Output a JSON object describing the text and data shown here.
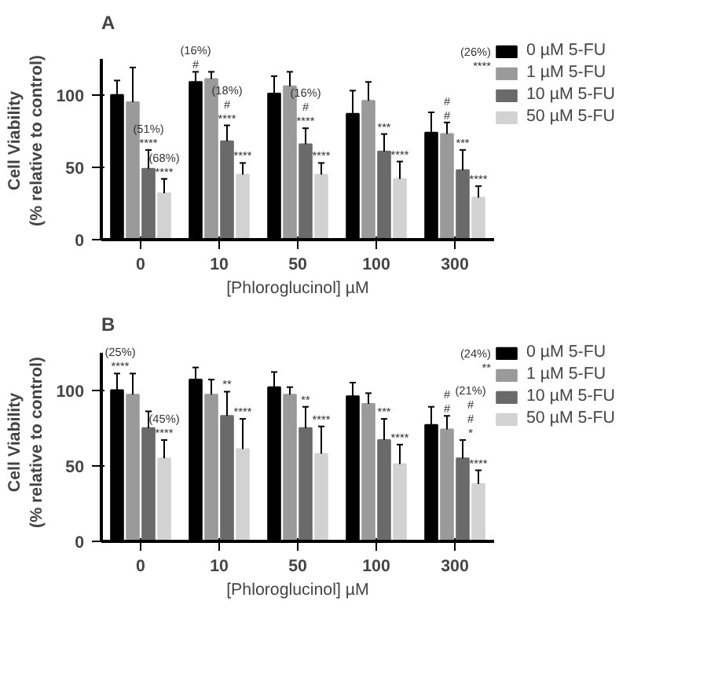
{
  "chart_data": [
    {
      "type": "bar",
      "title": "A",
      "xlabel": "[Phloroglucinol] µM",
      "ylabel": "Cell Viability\n(% relative to control)",
      "categories": [
        "0",
        "10",
        "50",
        "100",
        "300"
      ],
      "ylim": [
        0,
        125
      ],
      "yticks": [
        0,
        50,
        100
      ],
      "grid": false,
      "legend": "right",
      "series": [
        {
          "name": "0 µM 5-FU",
          "color": "#000000",
          "values": [
            100,
            109,
            101,
            87,
            74
          ],
          "errors": [
            10,
            7,
            12,
            16,
            14
          ]
        },
        {
          "name": "1 µM 5-FU",
          "color": "#9a9a9a",
          "values": [
            95,
            111,
            106,
            96,
            73
          ],
          "errors": [
            24,
            5,
            10,
            13,
            8
          ]
        },
        {
          "name": "10 µM 5-FU",
          "color": "#6a6a6a",
          "values": [
            49,
            68,
            66,
            61,
            48
          ],
          "errors": [
            13,
            11,
            11,
            12,
            14
          ]
        },
        {
          "name": "50 µM 5-FU",
          "color": "#d2d2d2",
          "values": [
            32,
            45,
            45,
            42,
            29
          ],
          "errors": [
            10,
            8,
            8,
            12,
            8
          ]
        }
      ],
      "annotations": [
        {
          "text": "(51%)\n****",
          "x": "0",
          "y": 62
        },
        {
          "text": "(68%)\n****",
          "x": "0",
          "y": 42
        },
        {
          "text": "(16%)\n#",
          "x": "10",
          "y": 116
        },
        {
          "text": "(18%)\n#\n****",
          "x": "10",
          "y": 79
        },
        {
          "text": "****",
          "x": "10",
          "y": 53
        },
        {
          "text": "(16%)\n#\n****",
          "x": "50",
          "y": 77
        },
        {
          "text": "****",
          "x": "50",
          "y": 53
        },
        {
          "text": "***",
          "x": "100",
          "y": 73
        },
        {
          "text": "****",
          "x": "100",
          "y": 54
        },
        "(26%)\n****",
        {
          "text": "#\n#",
          "x": "300",
          "y": 81
        },
        {
          "text": "***",
          "x": "300",
          "y": 62
        },
        {
          "text": "****",
          "x": "300",
          "y": 37
        }
      ]
    },
    {
      "type": "bar",
      "title": "B",
      "xlabel": "[Phloroglucinol] µM",
      "ylabel": "Cell Viability\n(% relative to control)",
      "categories": [
        "0",
        "10",
        "50",
        "100",
        "300"
      ],
      "ylim": [
        0,
        125
      ],
      "yticks": [
        0,
        50,
        100
      ],
      "grid": false,
      "legend": "right",
      "series": [
        {
          "name": "0 µM 5-FU",
          "color": "#000000",
          "values": [
            100,
            107,
            102,
            96,
            77
          ],
          "errors": [
            11,
            8,
            10,
            9,
            12
          ]
        },
        {
          "name": "1 µM 5-FU",
          "color": "#9a9a9a",
          "values": [
            97,
            97,
            97,
            91,
            74
          ],
          "errors": [
            14,
            10,
            5,
            7,
            9
          ]
        },
        {
          "name": "10 µM 5-FU",
          "color": "#6a6a6a",
          "values": [
            75,
            83,
            75,
            67,
            55
          ],
          "errors": [
            11,
            16,
            14,
            14,
            12
          ]
        },
        {
          "name": "50 µM 5-FU",
          "color": "#d2d2d2",
          "values": [
            55,
            61,
            58,
            51,
            38
          ],
          "errors": [
            12,
            20,
            18,
            13,
            9
          ]
        }
      ],
      "annotations": [
        {
          "text": "(25%)\n****",
          "x": "0",
          "y": 111
        },
        {
          "text": "(45%)\n****",
          "x": "0",
          "y": 67
        },
        {
          "text": "**",
          "x": "10",
          "y": 99
        },
        {
          "text": "****",
          "x": "10",
          "y": 81
        },
        {
          "text": "**",
          "x": "50",
          "y": 89
        },
        {
          "text": "****",
          "x": "50",
          "y": 76
        },
        {
          "text": "***",
          "x": "100",
          "y": 81
        },
        {
          "text": "****",
          "x": "100",
          "y": 64
        },
        "(24%)\n**",
        {
          "text": "#\n#",
          "x": "300",
          "y": 83
        },
        {
          "text": "(21%)\n#\n#\n*",
          "x": "300",
          "y": 67
        },
        {
          "text": "****",
          "x": "300",
          "y": 47
        }
      ]
    }
  ]
}
